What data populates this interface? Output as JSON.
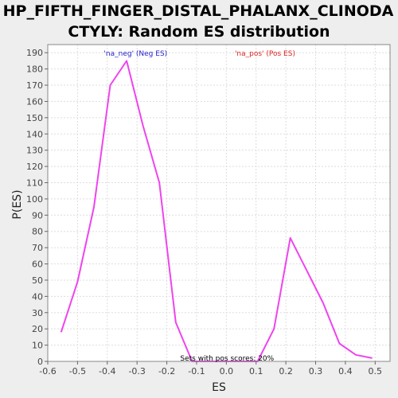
{
  "title_line1": "HP_FIFTH_FINGER_DISTAL_PHALANX_CLINODA",
  "title_line2": "CTYLY: Random ES distribution",
  "chart_data": {
    "type": "line",
    "title": "HP_FIFTH_FINGER_DISTAL_PHALANX_CLINODACTYLY: Random ES distribution",
    "xlabel": "ES",
    "ylabel": "P(ES)",
    "xlim": [
      -0.6,
      0.55
    ],
    "ylim": [
      0,
      195
    ],
    "xticks": [
      -0.6,
      -0.5,
      -0.4,
      -0.3,
      -0.2,
      -0.1,
      0.0,
      0.1,
      0.2,
      0.3,
      0.4,
      0.5
    ],
    "xtick_labels": [
      "-0.6",
      "-0.5",
      "-0.4",
      "-0.3",
      "-0.2",
      "-0.1",
      "0.0",
      "0.1",
      "0.2",
      "0.3",
      "0.4",
      "0.5"
    ],
    "yticks": [
      0,
      10,
      20,
      30,
      40,
      50,
      60,
      70,
      80,
      90,
      100,
      110,
      120,
      130,
      140,
      150,
      160,
      170,
      180,
      190
    ],
    "grid": true,
    "series": [
      {
        "color": "#ee44ee",
        "x": [
          -0.555,
          -0.5,
          -0.445,
          -0.39,
          -0.335,
          -0.28,
          -0.225,
          -0.17,
          -0.115,
          -0.06,
          -0.005,
          0.05,
          0.105,
          0.16,
          0.215,
          0.27,
          0.325,
          0.38,
          0.435,
          0.49
        ],
        "y": [
          18,
          49,
          95,
          170,
          185,
          145,
          110,
          24,
          0,
          0,
          0,
          0,
          0,
          20,
          76,
          56,
          36,
          11,
          4,
          2
        ]
      }
    ],
    "legend": [
      {
        "label": "'na_neg' (Neg ES)",
        "color": "#2222cc"
      },
      {
        "label": "'na_pos' (Pos ES)",
        "color": "#dd2222"
      }
    ],
    "annotation": "Sets with pos scores: 20%"
  }
}
